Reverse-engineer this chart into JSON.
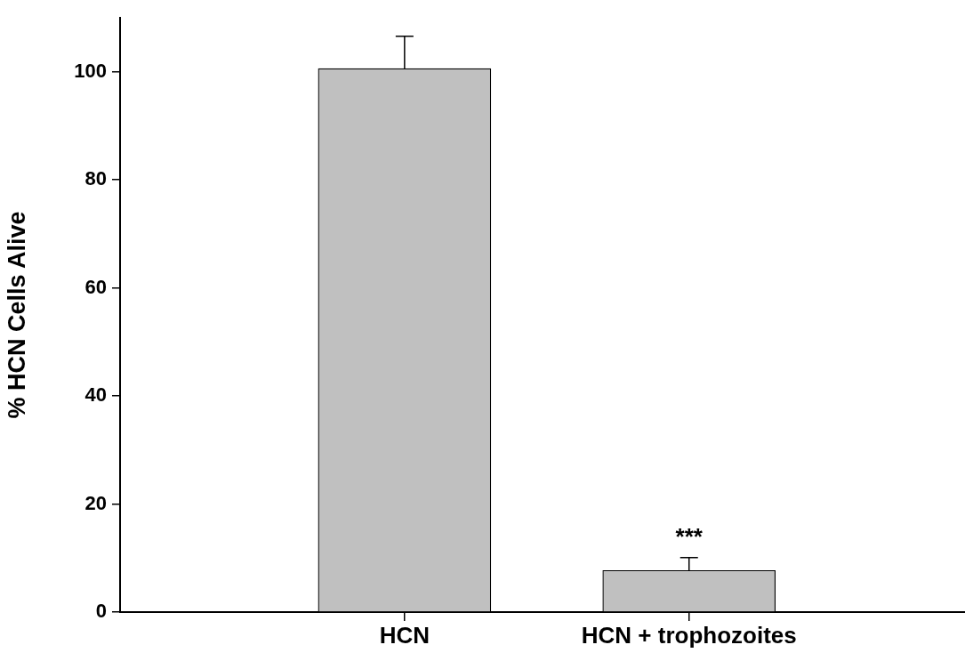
{
  "chart_data": {
    "type": "bar",
    "ylabel": "% HCN Cells Alive",
    "categories": [
      "HCN",
      "HCN + trophozoites"
    ],
    "values": [
      100.6,
      7.7
    ],
    "errors": [
      6,
      2.4
    ],
    "color": "#c0c0c0",
    "ylim": [
      0,
      110
    ],
    "yticks": [
      0,
      20,
      40,
      60,
      80,
      100
    ],
    "grid": false,
    "legend": false,
    "annotations": [
      "***"
    ]
  }
}
